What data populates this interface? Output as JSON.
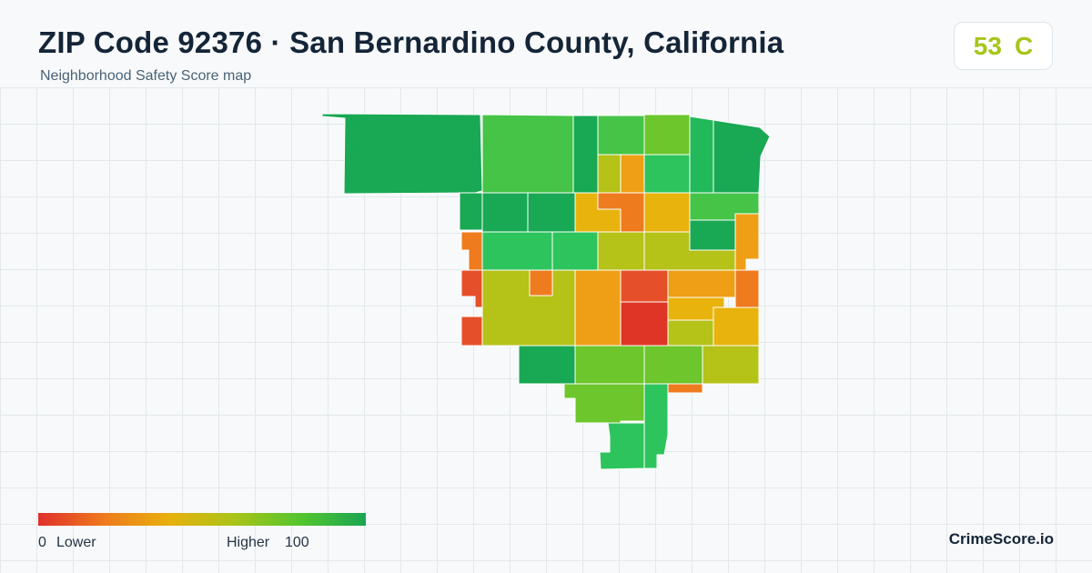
{
  "header": {
    "title": "ZIP Code 92376 · San Bernardino County, California",
    "subtitle": "Neighborhood Safety Score map"
  },
  "score": {
    "value": "53",
    "grade": "C",
    "color": "#a6c51a"
  },
  "legend": {
    "min_value": "0",
    "min_label": "Lower",
    "max_label": "Higher",
    "max_value": "100",
    "gradient_colors": [
      "#e0302a",
      "#ee7a1d",
      "#e8b00c",
      "#a9c418",
      "#53c52e",
      "#1aa552"
    ]
  },
  "brand": "CrimeScore.io",
  "map_regions_colors": {
    "dark_green": "#19a853",
    "green": "#22b95b",
    "medium_green": "#2ec45d",
    "light_green": "#45c447",
    "yellow_green": "#6cc62c",
    "olive": "#b5c218",
    "gold": "#e9b30d",
    "orange_gold": "#ee9f15",
    "orange": "#ef7b1f",
    "red_orange": "#e5502a",
    "red": "#df3526"
  }
}
